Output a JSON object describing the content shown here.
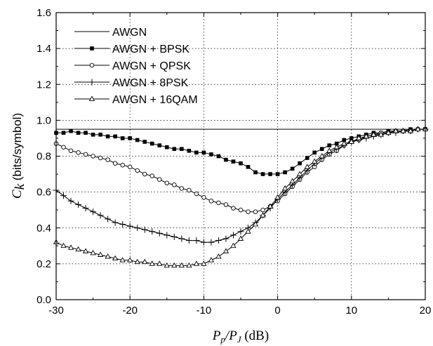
{
  "chart_data": {
    "type": "line",
    "xlabel_parts": [
      "P",
      "p",
      "/P",
      "J",
      " (dB)"
    ],
    "ylabel_parts": [
      "C",
      "k",
      " (bits/symbol)"
    ],
    "xlim": [
      -30,
      20
    ],
    "ylim": [
      0.0,
      1.6
    ],
    "x_ticks": [
      "-30",
      "-20",
      "-10",
      "0",
      "10",
      "20"
    ],
    "y_ticks": [
      "0.0",
      "0.2",
      "0.4",
      "0.6",
      "0.8",
      "1.0",
      "1.2",
      "1.4",
      "1.6"
    ],
    "grid": true,
    "legend_position": "top-left",
    "series": [
      {
        "name": "AWGN",
        "marker": "none",
        "points": [
          [
            -30,
            0.95
          ],
          [
            20,
            0.95
          ]
        ]
      },
      {
        "name": "AWGN + BPSK",
        "marker": "filled-square",
        "points": [
          [
            -30,
            0.93
          ],
          [
            -29,
            0.93
          ],
          [
            -28,
            0.94
          ],
          [
            -27,
            0.93
          ],
          [
            -26,
            0.93
          ],
          [
            -25,
            0.92
          ],
          [
            -24,
            0.92
          ],
          [
            -23,
            0.91
          ],
          [
            -22,
            0.91
          ],
          [
            -21,
            0.9
          ],
          [
            -20,
            0.9
          ],
          [
            -19,
            0.89
          ],
          [
            -18,
            0.88
          ],
          [
            -17,
            0.87
          ],
          [
            -16,
            0.86
          ],
          [
            -15,
            0.85
          ],
          [
            -14,
            0.84
          ],
          [
            -13,
            0.84
          ],
          [
            -12,
            0.83
          ],
          [
            -11,
            0.82
          ],
          [
            -10,
            0.82
          ],
          [
            -9,
            0.81
          ],
          [
            -8,
            0.8
          ],
          [
            -7,
            0.78
          ],
          [
            -6,
            0.77
          ],
          [
            -5,
            0.76
          ],
          [
            -4,
            0.74
          ],
          [
            -3,
            0.71
          ],
          [
            -2,
            0.7
          ],
          [
            -1,
            0.7
          ],
          [
            0,
            0.7
          ],
          [
            1,
            0.71
          ],
          [
            2,
            0.73
          ],
          [
            3,
            0.76
          ],
          [
            4,
            0.79
          ],
          [
            5,
            0.82
          ],
          [
            6,
            0.84
          ],
          [
            7,
            0.86
          ],
          [
            8,
            0.87
          ],
          [
            9,
            0.89
          ],
          [
            10,
            0.9
          ],
          [
            11,
            0.91
          ],
          [
            12,
            0.92
          ],
          [
            13,
            0.93
          ],
          [
            14,
            0.93
          ],
          [
            15,
            0.94
          ],
          [
            16,
            0.94
          ],
          [
            17,
            0.94
          ],
          [
            18,
            0.95
          ],
          [
            19,
            0.95
          ],
          [
            20,
            0.95
          ]
        ]
      },
      {
        "name": "AWGN + QPSK",
        "marker": "open-circle",
        "points": [
          [
            -30,
            0.87
          ],
          [
            -29,
            0.85
          ],
          [
            -28,
            0.83
          ],
          [
            -27,
            0.82
          ],
          [
            -26,
            0.81
          ],
          [
            -25,
            0.8
          ],
          [
            -24,
            0.79
          ],
          [
            -23,
            0.78
          ],
          [
            -22,
            0.76
          ],
          [
            -21,
            0.75
          ],
          [
            -20,
            0.74
          ],
          [
            -19,
            0.72
          ],
          [
            -18,
            0.7
          ],
          [
            -17,
            0.69
          ],
          [
            -16,
            0.67
          ],
          [
            -15,
            0.65
          ],
          [
            -14,
            0.64
          ],
          [
            -13,
            0.62
          ],
          [
            -12,
            0.61
          ],
          [
            -11,
            0.59
          ],
          [
            -10,
            0.57
          ],
          [
            -9,
            0.55
          ],
          [
            -8,
            0.54
          ],
          [
            -7,
            0.53
          ],
          [
            -6,
            0.51
          ],
          [
            -5,
            0.5
          ],
          [
            -4,
            0.49
          ],
          [
            -3,
            0.49
          ],
          [
            -2,
            0.5
          ],
          [
            -1,
            0.52
          ],
          [
            0,
            0.55
          ],
          [
            1,
            0.59
          ],
          [
            2,
            0.63
          ],
          [
            3,
            0.67
          ],
          [
            4,
            0.71
          ],
          [
            5,
            0.74
          ],
          [
            6,
            0.78
          ],
          [
            7,
            0.81
          ],
          [
            8,
            0.83
          ],
          [
            9,
            0.86
          ],
          [
            10,
            0.88
          ],
          [
            11,
            0.89
          ],
          [
            12,
            0.91
          ],
          [
            13,
            0.92
          ],
          [
            14,
            0.93
          ],
          [
            15,
            0.93
          ],
          [
            16,
            0.94
          ],
          [
            17,
            0.94
          ],
          [
            18,
            0.94
          ],
          [
            19,
            0.95
          ],
          [
            20,
            0.95
          ]
        ]
      },
      {
        "name": "AWGN + 8PSK",
        "marker": "plus",
        "points": [
          [
            -30,
            0.61
          ],
          [
            -29,
            0.58
          ],
          [
            -28,
            0.55
          ],
          [
            -27,
            0.53
          ],
          [
            -26,
            0.51
          ],
          [
            -25,
            0.49
          ],
          [
            -24,
            0.47
          ],
          [
            -23,
            0.45
          ],
          [
            -22,
            0.43
          ],
          [
            -21,
            0.42
          ],
          [
            -20,
            0.41
          ],
          [
            -19,
            0.4
          ],
          [
            -18,
            0.39
          ],
          [
            -17,
            0.38
          ],
          [
            -16,
            0.37
          ],
          [
            -15,
            0.36
          ],
          [
            -14,
            0.35
          ],
          [
            -13,
            0.34
          ],
          [
            -12,
            0.33
          ],
          [
            -11,
            0.33
          ],
          [
            -10,
            0.32
          ],
          [
            -9,
            0.32
          ],
          [
            -8,
            0.33
          ],
          [
            -7,
            0.34
          ],
          [
            -6,
            0.36
          ],
          [
            -5,
            0.38
          ],
          [
            -4,
            0.4
          ],
          [
            -3,
            0.43
          ],
          [
            -2,
            0.47
          ],
          [
            -1,
            0.51
          ],
          [
            0,
            0.56
          ],
          [
            1,
            0.6
          ],
          [
            2,
            0.64
          ],
          [
            3,
            0.68
          ],
          [
            4,
            0.72
          ],
          [
            5,
            0.76
          ],
          [
            6,
            0.79
          ],
          [
            7,
            0.82
          ],
          [
            8,
            0.84
          ],
          [
            9,
            0.86
          ],
          [
            10,
            0.88
          ],
          [
            11,
            0.89
          ],
          [
            12,
            0.9
          ],
          [
            13,
            0.91
          ],
          [
            14,
            0.92
          ],
          [
            15,
            0.93
          ],
          [
            16,
            0.93
          ],
          [
            17,
            0.94
          ],
          [
            18,
            0.94
          ],
          [
            19,
            0.95
          ],
          [
            20,
            0.95
          ]
        ]
      },
      {
        "name": "AWGN + 16QAM",
        "marker": "open-triangle",
        "points": [
          [
            -30,
            0.32
          ],
          [
            -29,
            0.3
          ],
          [
            -28,
            0.29
          ],
          [
            -27,
            0.28
          ],
          [
            -26,
            0.27
          ],
          [
            -25,
            0.26
          ],
          [
            -24,
            0.25
          ],
          [
            -23,
            0.24
          ],
          [
            -22,
            0.23
          ],
          [
            -21,
            0.22
          ],
          [
            -20,
            0.22
          ],
          [
            -19,
            0.21
          ],
          [
            -18,
            0.21
          ],
          [
            -17,
            0.2
          ],
          [
            -16,
            0.2
          ],
          [
            -15,
            0.19
          ],
          [
            -14,
            0.19
          ],
          [
            -13,
            0.19
          ],
          [
            -12,
            0.19
          ],
          [
            -11,
            0.2
          ],
          [
            -10,
            0.2
          ],
          [
            -9,
            0.22
          ],
          [
            -8,
            0.24
          ],
          [
            -7,
            0.27
          ],
          [
            -6,
            0.3
          ],
          [
            -5,
            0.34
          ],
          [
            -4,
            0.38
          ],
          [
            -3,
            0.42
          ],
          [
            -2,
            0.47
          ],
          [
            -1,
            0.52
          ],
          [
            0,
            0.57
          ],
          [
            1,
            0.62
          ],
          [
            2,
            0.66
          ],
          [
            3,
            0.7
          ],
          [
            4,
            0.74
          ],
          [
            5,
            0.77
          ],
          [
            6,
            0.8
          ],
          [
            7,
            0.83
          ],
          [
            8,
            0.85
          ],
          [
            9,
            0.87
          ],
          [
            10,
            0.88
          ],
          [
            11,
            0.9
          ],
          [
            12,
            0.91
          ],
          [
            13,
            0.92
          ],
          [
            14,
            0.92
          ],
          [
            15,
            0.93
          ],
          [
            16,
            0.94
          ],
          [
            17,
            0.94
          ],
          [
            18,
            0.94
          ],
          [
            19,
            0.95
          ],
          [
            20,
            0.95
          ]
        ]
      }
    ]
  }
}
